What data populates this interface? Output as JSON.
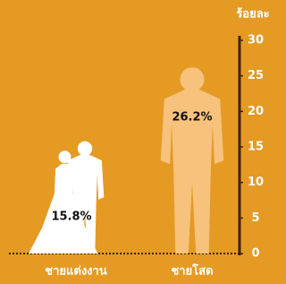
{
  "chart_data": {
    "type": "pictograph",
    "y_label": "ร้อยละ",
    "categories": [
      "ชายแต่งงาน",
      "ชายโสด"
    ],
    "values": [
      15.8,
      26.2
    ],
    "value_labels": [
      "15.8%",
      "26.2%"
    ],
    "colors": [
      "#ffffff",
      "#f6c27c"
    ],
    "ylim": [
      0,
      30
    ],
    "yticks": [
      0,
      5,
      10,
      15,
      20,
      25,
      30
    ],
    "y_axis_side": "right"
  }
}
